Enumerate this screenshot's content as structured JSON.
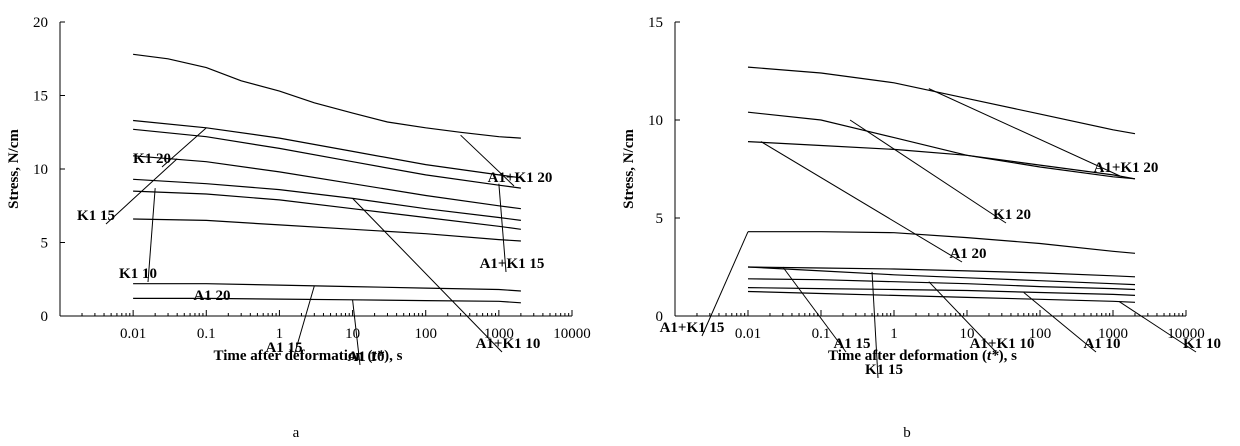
{
  "chart_data": [
    {
      "panel": "a",
      "type": "line",
      "xscale": "log",
      "xlabel": "Time after deformation (t*), s",
      "ylabel": "Stress, N/cm",
      "xlim": [
        0.001,
        10000
      ],
      "ylim": [
        0,
        20
      ],
      "xticks": [
        "0.01",
        "0.1",
        "1",
        "10",
        "100",
        "1000",
        "10000"
      ],
      "yticks": [
        "0",
        "5",
        "10",
        "15",
        "20"
      ],
      "grid": false,
      "series": [
        {
          "name": "A1+K1 20",
          "x": [
            0.01,
            0.03,
            0.1,
            0.3,
            1,
            3,
            10,
            30,
            100,
            300,
            1000,
            2000
          ],
          "values": [
            17.8,
            17.5,
            16.9,
            16.0,
            15.3,
            14.5,
            13.8,
            13.2,
            12.8,
            12.5,
            12.2,
            12.1
          ]
        },
        {
          "name": "K1 20",
          "x": [
            0.01,
            0.1,
            1,
            10,
            100,
            1000,
            2000
          ],
          "values": [
            13.3,
            12.8,
            12.1,
            11.2,
            10.3,
            9.6,
            9.4
          ]
        },
        {
          "name": "A1+K1 15",
          "x": [
            0.01,
            0.1,
            1,
            10,
            100,
            1000,
            2000
          ],
          "values": [
            12.7,
            12.2,
            11.4,
            10.5,
            9.6,
            8.9,
            8.7
          ]
        },
        {
          "name": "K1 15",
          "x": [
            0.01,
            0.1,
            1,
            10,
            100,
            1000,
            2000
          ],
          "values": [
            10.9,
            10.5,
            9.8,
            9.0,
            8.2,
            7.5,
            7.3
          ]
        },
        {
          "name": "A1+K1 10",
          "x": [
            0.01,
            0.1,
            1,
            10,
            100,
            1000,
            2000
          ],
          "values": [
            9.3,
            9.0,
            8.6,
            8.0,
            7.3,
            6.7,
            6.5
          ]
        },
        {
          "name": "K1 10",
          "x": [
            0.01,
            0.1,
            1,
            10,
            100,
            1000,
            2000
          ],
          "values": [
            8.5,
            8.3,
            7.9,
            7.3,
            6.7,
            6.1,
            5.9
          ]
        },
        {
          "name": "A1 20",
          "x": [
            0.01,
            0.1,
            1,
            10,
            100,
            1000,
            2000
          ],
          "values": [
            6.6,
            6.5,
            6.2,
            5.9,
            5.6,
            5.2,
            5.1
          ]
        },
        {
          "name": "A1 15",
          "x": [
            0.01,
            0.1,
            1,
            10,
            100,
            1000,
            2000
          ],
          "values": [
            2.2,
            2.2,
            2.1,
            2.0,
            1.9,
            1.8,
            1.7
          ]
        },
        {
          "name": "A1 10",
          "x": [
            0.01,
            0.1,
            1,
            10,
            100,
            1000,
            2000
          ],
          "values": [
            1.2,
            1.2,
            1.15,
            1.1,
            1.05,
            1.0,
            0.9
          ]
        }
      ],
      "labels": [
        {
          "text": "A1+K1 20",
          "pointer": [
            300,
            12.3
          ]
        },
        {
          "text": "K1 20",
          "pointer": [
            0.1,
            12.8
          ]
        },
        {
          "text": "A1+K1 15",
          "pointer": [
            1000,
            9.0
          ]
        },
        {
          "text": "K1 15",
          "pointer": [
            0.04,
            10.7
          ]
        },
        {
          "text": "K1 10",
          "pointer": [
            0.02,
            8.7
          ]
        },
        {
          "text": "A1 20",
          "pointer": null
        },
        {
          "text": "A1+K1 10",
          "pointer": [
            10,
            8.0
          ]
        },
        {
          "text": "A1 15",
          "pointer": [
            3,
            2.05
          ]
        },
        {
          "text": "A1 10",
          "pointer": [
            10,
            1.1
          ]
        }
      ]
    },
    {
      "panel": "b",
      "type": "line",
      "xscale": "log",
      "xlabel": "Time after deformation (t*), s",
      "ylabel": "Stress, N/cm",
      "xlim": [
        0.001,
        10000
      ],
      "ylim": [
        0,
        15
      ],
      "xticks": [
        "0.01",
        "0.1",
        "1",
        "10",
        "100",
        "1000",
        "10000"
      ],
      "yticks": [
        "0",
        "5",
        "10",
        "15"
      ],
      "grid": false,
      "series": [
        {
          "name": "A1+K1 20",
          "x": [
            0.01,
            0.1,
            1,
            10,
            100,
            1000,
            2000
          ],
          "values": [
            12.7,
            12.4,
            11.9,
            11.1,
            10.3,
            9.5,
            9.3
          ]
        },
        {
          "name": "K1 20",
          "x": [
            0.01,
            0.1,
            1,
            10,
            100,
            1000,
            2000
          ],
          "values": [
            10.4,
            10.0,
            9.1,
            8.2,
            7.6,
            7.1,
            7.0
          ]
        },
        {
          "name": "A1 20",
          "x": [
            0.01,
            0.1,
            1,
            10,
            100,
            1000,
            2000
          ],
          "values": [
            8.9,
            8.7,
            8.5,
            8.2,
            7.7,
            7.2,
            7.0
          ]
        },
        {
          "name": "A1+K1 15",
          "x": [
            0.01,
            0.1,
            1,
            10,
            100,
            1000,
            2000
          ],
          "values": [
            4.3,
            4.3,
            4.25,
            4.0,
            3.7,
            3.3,
            3.2
          ]
        },
        {
          "name": "A1 15",
          "x": [
            0.01,
            0.1,
            1,
            10,
            100,
            1000,
            2000
          ],
          "values": [
            2.5,
            2.45,
            2.4,
            2.3,
            2.2,
            2.05,
            2.0
          ]
        },
        {
          "name": "K1 15",
          "x": [
            0.01,
            0.1,
            1,
            10,
            100,
            1000,
            2000
          ],
          "values": [
            2.5,
            2.3,
            2.1,
            1.95,
            1.8,
            1.65,
            1.6
          ]
        },
        {
          "name": "A1+K1 10",
          "x": [
            0.01,
            0.1,
            1,
            10,
            100,
            1000,
            2000
          ],
          "values": [
            1.9,
            1.85,
            1.75,
            1.65,
            1.5,
            1.4,
            1.35
          ]
        },
        {
          "name": "A1 10",
          "x": [
            0.01,
            0.1,
            1,
            10,
            100,
            1000,
            2000
          ],
          "values": [
            1.45,
            1.4,
            1.35,
            1.3,
            1.2,
            1.1,
            1.05
          ]
        },
        {
          "name": "K1 10",
          "x": [
            0.01,
            0.1,
            1,
            10,
            100,
            1000,
            2000
          ],
          "values": [
            1.25,
            1.15,
            1.05,
            0.95,
            0.85,
            0.75,
            0.7
          ]
        }
      ],
      "labels": [
        {
          "text": "A1+K1 20",
          "pointer": [
            3,
            11.6
          ]
        },
        {
          "text": "K1 20",
          "pointer": [
            0.25,
            10.0
          ]
        },
        {
          "text": "A1 20",
          "pointer": [
            0.015,
            8.9
          ]
        },
        {
          "text": "A1+K1 15",
          "pointer": [
            0.01,
            4.3
          ]
        },
        {
          "text": "A1 15",
          "pointer": [
            0.03,
            2.5
          ]
        },
        {
          "text": "A1+K1 10",
          "pointer": [
            3,
            1.75
          ]
        },
        {
          "text": "K1 15",
          "pointer": [
            0.5,
            2.25
          ]
        },
        {
          "text": "A1 10",
          "pointer": [
            60,
            1.2
          ]
        },
        {
          "text": "K1 10",
          "pointer": [
            1200,
            0.75
          ]
        }
      ]
    }
  ],
  "panel_letters": [
    "a",
    "b"
  ]
}
